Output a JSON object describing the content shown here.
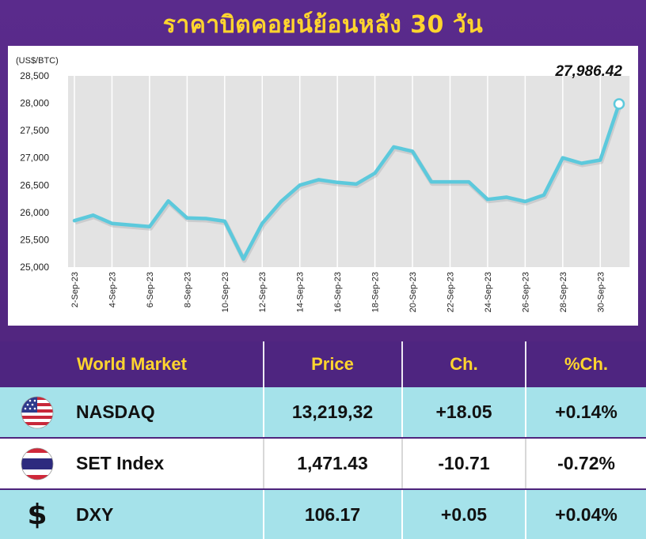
{
  "title": "ราคาบิตคอยน์ย้อนหลัง 30 วัน",
  "colors": {
    "background": "#5b2a8a",
    "title": "#ffd52e",
    "line": "#5cc9dc",
    "row_alt": "#a5e2ea"
  },
  "chart_data": {
    "type": "line",
    "ylabel": "(US$/BTC)",
    "ylim": [
      25000,
      28500
    ],
    "yticks": [
      "25,000",
      "25,500",
      "26,000",
      "26,500",
      "27,000",
      "27,500",
      "28,000",
      "28,500"
    ],
    "grid": "vertical",
    "categories": [
      "2-Sep-23",
      "3-Sep-23",
      "4-Sep-23",
      "5-Sep-23",
      "6-Sep-23",
      "7-Sep-23",
      "8-Sep-23",
      "9-Sep-23",
      "10-Sep-23",
      "11-Sep-23",
      "12-Sep-23",
      "13-Sep-23",
      "14-Sep-23",
      "15-Sep-23",
      "16-Sep-23",
      "17-Sep-23",
      "18-Sep-23",
      "19-Sep-23",
      "20-Sep-23",
      "21-Sep-23",
      "22-Sep-23",
      "23-Sep-23",
      "24-Sep-23",
      "25-Sep-23",
      "26-Sep-23",
      "27-Sep-23",
      "28-Sep-23",
      "29-Sep-23",
      "30-Sep-23",
      "1-Oct-23"
    ],
    "xtick_labels": [
      "2-Sep-23",
      "4-Sep-23",
      "6-Sep-23",
      "8-Sep-23",
      "10-Sep-23",
      "12-Sep-23",
      "14-Sep-23",
      "16-Sep-23",
      "18-Sep-23",
      "20-Sep-23",
      "22-Sep-23",
      "24-Sep-23",
      "26-Sep-23",
      "28-Sep-23",
      "30-Sep-23"
    ],
    "values": [
      25850,
      25950,
      25800,
      25770,
      25740,
      26210,
      25900,
      25890,
      25840,
      25150,
      25800,
      26200,
      26500,
      26600,
      26550,
      26520,
      26720,
      27200,
      27120,
      26560,
      26560,
      26560,
      26240,
      26280,
      26200,
      26320,
      27000,
      26900,
      26960,
      27986.42
    ],
    "last_label": "27,986.42"
  },
  "table": {
    "headers": [
      "World Market",
      "Price",
      "Ch.",
      "%Ch."
    ],
    "rows": [
      {
        "icon": "us-flag-icon",
        "name": "NASDAQ",
        "price": "13,219,32",
        "ch": "+18.05",
        "pct": "+0.14%"
      },
      {
        "icon": "thai-flag-icon",
        "name": "SET Index",
        "price": "1,471.43",
        "ch": "-10.71",
        "pct": "-0.72%"
      },
      {
        "icon": "dollar-icon",
        "icon_glyph": "$",
        "name": "DXY",
        "price": "106.17",
        "ch": "+0.05",
        "pct": "+0.04%"
      }
    ]
  }
}
